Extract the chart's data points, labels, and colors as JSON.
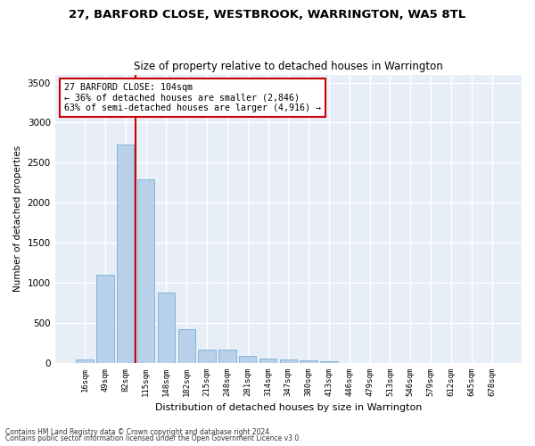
{
  "title": "27, BARFORD CLOSE, WESTBROOK, WARRINGTON, WA5 8TL",
  "subtitle": "Size of property relative to detached houses in Warrington",
  "xlabel": "Distribution of detached houses by size in Warrington",
  "ylabel": "Number of detached properties",
  "bar_values": [
    50,
    1100,
    2730,
    2290,
    880,
    425,
    170,
    165,
    90,
    60,
    50,
    35,
    25,
    0,
    0,
    0,
    0,
    0,
    0,
    0,
    0
  ],
  "categories": [
    "16sqm",
    "49sqm",
    "82sqm",
    "115sqm",
    "148sqm",
    "182sqm",
    "215sqm",
    "248sqm",
    "281sqm",
    "314sqm",
    "347sqm",
    "380sqm",
    "413sqm",
    "446sqm",
    "479sqm",
    "513sqm",
    "546sqm",
    "579sqm",
    "612sqm",
    "645sqm",
    "678sqm"
  ],
  "bar_color": "#b8d0ea",
  "bar_edgecolor": "#7aafd4",
  "background_color": "#e8eef8",
  "grid_color": "#ffffff",
  "vline_color": "#cc0000",
  "annotation_text": "27 BARFORD CLOSE: 104sqm\n← 36% of detached houses are smaller (2,846)\n63% of semi-detached houses are larger (4,916) →",
  "annotation_box_color": "#ffffff",
  "annotation_border_color": "#cc0000",
  "ylim": [
    0,
    3600
  ],
  "yticks": [
    0,
    500,
    1000,
    1500,
    2000,
    2500,
    3000,
    3500
  ],
  "footnote1": "Contains HM Land Registry data © Crown copyright and database right 2024.",
  "footnote2": "Contains public sector information licensed under the Open Government Licence v3.0."
}
